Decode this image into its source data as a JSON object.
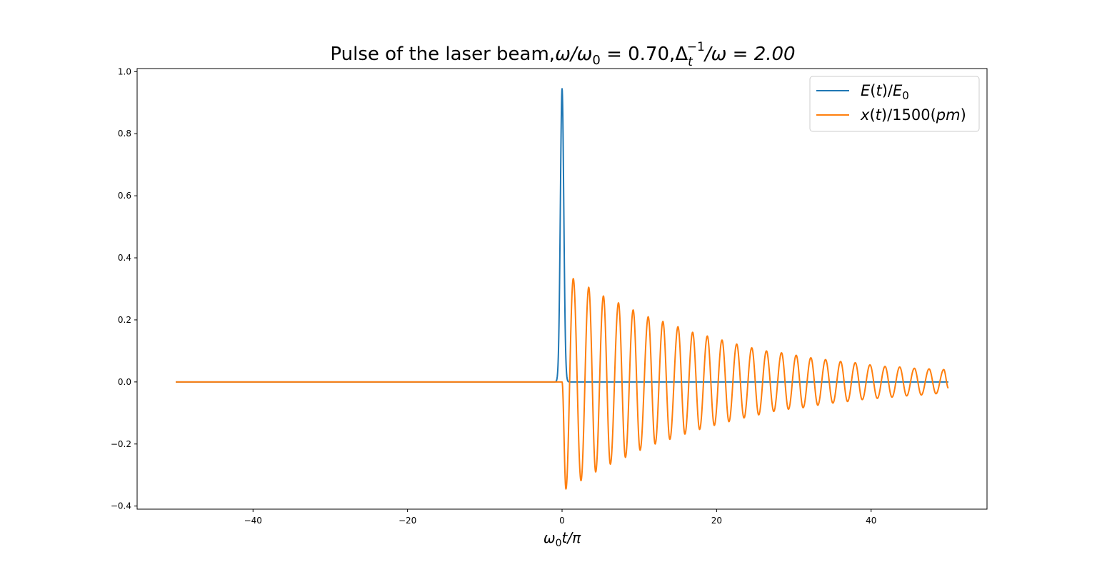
{
  "chart_data": {
    "type": "line",
    "title": {
      "prefix": "Pulse of the laser beam,",
      "part1": "ω/ω",
      "part1_sub": "0",
      "part1_val": " = 0.70,",
      "part2": "Δ",
      "part2_sub": "t",
      "part2_sup": "−1",
      "part2_val": "/ω = 2.00"
    },
    "xlabel": {
      "base": "ω",
      "sub": "0",
      "rest": "t/π"
    },
    "ylabel": "",
    "xlim": [
      -55,
      55
    ],
    "ylim": [
      -0.41,
      1.01
    ],
    "xticks": [
      -40,
      -20,
      0,
      20,
      40
    ],
    "xtick_labels": [
      "−40",
      "−20",
      "0",
      "20",
      "40"
    ],
    "yticks": [
      -0.4,
      -0.2,
      0.0,
      0.2,
      0.4,
      0.6,
      0.8,
      1.0
    ],
    "ytick_labels": [
      "−0.4",
      "−0.2",
      "0.0",
      "0.2",
      "0.4",
      "0.6",
      "0.8",
      "1.0"
    ],
    "grid": false,
    "legend_position": "top-right",
    "series": [
      {
        "name": "E(t)/E₀",
        "legend": {
          "a": "E",
          "b": "(",
          "c": "t",
          "d": ")/",
          "e": "E",
          "f": "0"
        },
        "color": "#1f77b4",
        "description": "narrow pulse",
        "x_range": [
          -50,
          50
        ],
        "peak_x": 0.0,
        "peak_y": 0.945,
        "width_sigma": 0.22
      },
      {
        "name": "x(t)/1500(pm)",
        "legend": {
          "a": "x",
          "b": "(",
          "c": "t",
          "d": ")/1500(",
          "e": "pm",
          "f": ")"
        },
        "color": "#ff7f0e",
        "description": "damped oscillation after pulse",
        "x_range": [
          -50,
          50
        ],
        "extrema": [
          [
            0.5,
            -0.345
          ],
          [
            1.45,
            0.333
          ],
          [
            2.45,
            -0.318
          ],
          [
            3.45,
            0.305
          ],
          [
            4.35,
            -0.29
          ],
          [
            5.35,
            0.277
          ],
          [
            6.25,
            -0.265
          ],
          [
            7.3,
            0.255
          ],
          [
            8.2,
            -0.243
          ],
          [
            9.2,
            0.232
          ],
          [
            10.1,
            -0.22
          ],
          [
            11.15,
            0.21
          ],
          [
            12.05,
            -0.2
          ],
          [
            13.05,
            0.195
          ],
          [
            13.95,
            -0.185
          ],
          [
            15.0,
            0.178
          ],
          [
            15.9,
            -0.168
          ],
          [
            16.9,
            0.16
          ],
          [
            17.8,
            -0.153
          ],
          [
            18.8,
            0.148
          ],
          [
            19.7,
            -0.14
          ],
          [
            20.7,
            0.135
          ],
          [
            21.6,
            -0.128
          ],
          [
            22.6,
            0.122
          ],
          [
            23.55,
            -0.116
          ],
          [
            24.55,
            0.11
          ],
          [
            25.45,
            -0.106
          ],
          [
            26.45,
            0.1
          ],
          [
            27.4,
            -0.095
          ],
          [
            28.4,
            0.094
          ],
          [
            29.3,
            -0.088
          ],
          [
            30.3,
            0.086
          ],
          [
            31.2,
            -0.083
          ],
          [
            32.2,
            0.078
          ],
          [
            33.1,
            -0.075
          ],
          [
            34.1,
            0.072
          ],
          [
            35.05,
            -0.068
          ],
          [
            36.05,
            0.066
          ],
          [
            36.95,
            -0.063
          ],
          [
            37.95,
            0.062
          ],
          [
            38.85,
            -0.057
          ],
          [
            39.85,
            0.055
          ],
          [
            40.8,
            -0.053
          ],
          [
            41.8,
            0.05
          ],
          [
            42.7,
            -0.049
          ],
          [
            43.7,
            0.048
          ],
          [
            44.6,
            -0.045
          ],
          [
            45.6,
            0.044
          ],
          [
            46.5,
            -0.042
          ],
          [
            47.5,
            0.042
          ],
          [
            48.4,
            -0.038
          ],
          [
            49.4,
            0.04
          ]
        ],
        "end": [
          50.0,
          -0.02
        ]
      }
    ]
  }
}
